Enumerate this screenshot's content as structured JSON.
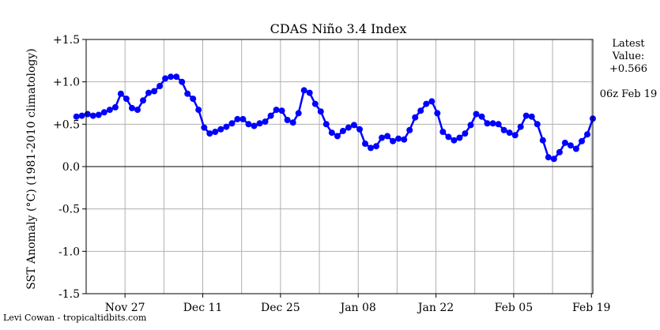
{
  "chart_data": {
    "type": "line",
    "title": "CDAS Niño 3.4 Index",
    "ylabel": "SST Anomaly (°C) (1981-2010 climatology)",
    "xlabel": "",
    "ylim": [
      -1.5,
      1.5
    ],
    "yticks": [
      {
        "value": 1.5,
        "label": "+1.5"
      },
      {
        "value": 1.0,
        "label": "+1.0"
      },
      {
        "value": 0.5,
        "label": "+0.5"
      },
      {
        "value": 0.0,
        "label": "0.0"
      },
      {
        "value": -0.5,
        "label": "-0.5"
      },
      {
        "value": -1.0,
        "label": "-1.0"
      },
      {
        "value": -1.5,
        "label": "-1.5"
      }
    ],
    "xticks": [
      {
        "date": "2017-11-27",
        "label": "Nov 27"
      },
      {
        "date": "2017-12-11",
        "label": "Dec 11"
      },
      {
        "date": "2017-12-25",
        "label": "Dec 25"
      },
      {
        "date": "2018-01-08",
        "label": "Jan 08"
      },
      {
        "date": "2018-01-22",
        "label": "Jan 22"
      },
      {
        "date": "2018-02-05",
        "label": "Feb 05"
      },
      {
        "date": "2018-02-19",
        "label": "Feb 19"
      }
    ],
    "x_start": "2017-11-20",
    "x_end": "2018-02-19",
    "grid": true,
    "series_color": "#0000ff",
    "series": [
      {
        "values": [
          0.59,
          0.6,
          0.62,
          0.6,
          0.61,
          0.64,
          0.67,
          0.7,
          0.86,
          0.8,
          0.69,
          0.67,
          0.78,
          0.87,
          0.89,
          0.95,
          1.04,
          1.06,
          1.06,
          1.0,
          0.86,
          0.8,
          0.67,
          0.46,
          0.39,
          0.41,
          0.44,
          0.47,
          0.51,
          0.56,
          0.56,
          0.5,
          0.48,
          0.51,
          0.53,
          0.6,
          0.67,
          0.66,
          0.55,
          0.52,
          0.63,
          0.9,
          0.87,
          0.74,
          0.65,
          0.5,
          0.4,
          0.36,
          0.42,
          0.46,
          0.49,
          0.44,
          0.27,
          0.22,
          0.24,
          0.34,
          0.36,
          0.3,
          0.33,
          0.32,
          0.43,
          0.58,
          0.66,
          0.74,
          0.77,
          0.63,
          0.41,
          0.35,
          0.31,
          0.34,
          0.39,
          0.49,
          0.62,
          0.59,
          0.51,
          0.51,
          0.5,
          0.43,
          0.4,
          0.37,
          0.47,
          0.6,
          0.59,
          0.5,
          0.31,
          0.11,
          0.09,
          0.17,
          0.28,
          0.25,
          0.21,
          0.3,
          0.38,
          0.566
        ]
      }
    ]
  },
  "latest": {
    "heading": "Latest",
    "value_label": "Value:",
    "value": "+0.566",
    "timestamp": "06z Feb 19"
  },
  "credit": "Levi Cowan - tropicaltidbits.com"
}
